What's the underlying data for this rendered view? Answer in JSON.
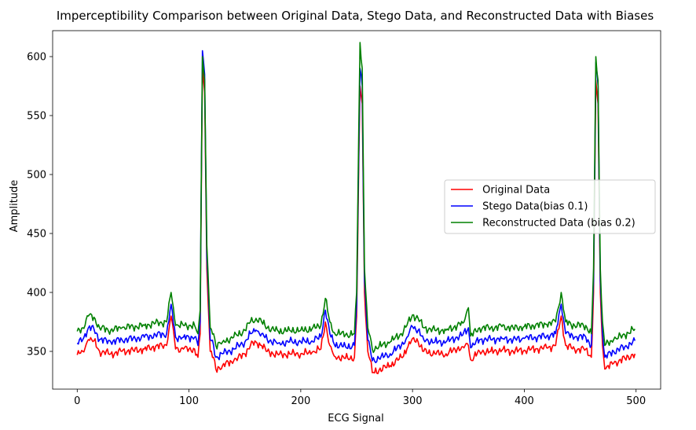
{
  "chart_data": {
    "type": "line",
    "title": "Imperceptibility Comparison between  Original Data, Stego Data, and Reconstructed Data with Biases",
    "xlabel": "ECG Signal",
    "ylabel": "Amplitude",
    "xlim": [
      -22,
      522
    ],
    "ylim": [
      318,
      622
    ],
    "xticks": [
      0,
      100,
      200,
      300,
      400,
      500
    ],
    "yticks": [
      350,
      400,
      450,
      500,
      550,
      600
    ],
    "grid": false,
    "legend_position": "center-right",
    "series": [
      {
        "name": " Original Data",
        "color": "#ff0000",
        "offset": 0,
        "points": [
          [
            0,
            347
          ],
          [
            5,
            350
          ],
          [
            10,
            360
          ],
          [
            15,
            359
          ],
          [
            20,
            350
          ],
          [
            30,
            348
          ],
          [
            40,
            350
          ],
          [
            50,
            351
          ],
          [
            60,
            352
          ],
          [
            70,
            354
          ],
          [
            80,
            355
          ],
          [
            84,
            380
          ],
          [
            88,
            352
          ],
          [
            95,
            352
          ],
          [
            100,
            352
          ],
          [
            105,
            352
          ],
          [
            108,
            345
          ],
          [
            110,
            365
          ],
          [
            112,
            590
          ],
          [
            114,
            570
          ],
          [
            116,
            420
          ],
          [
            119,
            350
          ],
          [
            122,
            345
          ],
          [
            124,
            335
          ],
          [
            130,
            338
          ],
          [
            140,
            342
          ],
          [
            150,
            348
          ],
          [
            155,
            355
          ],
          [
            160,
            358
          ],
          [
            165,
            355
          ],
          [
            170,
            350
          ],
          [
            180,
            347
          ],
          [
            190,
            348
          ],
          [
            200,
            348
          ],
          [
            210,
            349
          ],
          [
            218,
            352
          ],
          [
            222,
            375
          ],
          [
            226,
            355
          ],
          [
            230,
            346
          ],
          [
            240,
            344
          ],
          [
            248,
            345
          ],
          [
            250,
            380
          ],
          [
            253,
            575
          ],
          [
            255,
            560
          ],
          [
            257,
            400
          ],
          [
            260,
            350
          ],
          [
            262,
            343
          ],
          [
            264,
            332
          ],
          [
            270,
            334
          ],
          [
            280,
            338
          ],
          [
            290,
            345
          ],
          [
            295,
            352
          ],
          [
            300,
            361
          ],
          [
            305,
            358
          ],
          [
            310,
            350
          ],
          [
            320,
            348
          ],
          [
            330,
            348
          ],
          [
            340,
            352
          ],
          [
            345,
            354
          ],
          [
            350,
            355
          ],
          [
            352,
            343
          ],
          [
            360,
            350
          ],
          [
            370,
            350
          ],
          [
            380,
            351
          ],
          [
            390,
            350
          ],
          [
            400,
            351
          ],
          [
            410,
            352
          ],
          [
            420,
            353
          ],
          [
            428,
            355
          ],
          [
            433,
            380
          ],
          [
            437,
            355
          ],
          [
            445,
            352
          ],
          [
            455,
            352
          ],
          [
            460,
            345
          ],
          [
            462,
            400
          ],
          [
            464,
            580
          ],
          [
            466,
            560
          ],
          [
            468,
            400
          ],
          [
            470,
            355
          ],
          [
            472,
            335
          ],
          [
            480,
            340
          ],
          [
            490,
            344
          ],
          [
            499,
            348
          ]
        ]
      },
      {
        "name": " Stego Data(bias 0.1)",
        "color": "#0000ff",
        "offset": 10,
        "points": [
          [
            0,
            347
          ],
          [
            5,
            350
          ],
          [
            10,
            360
          ],
          [
            15,
            359
          ],
          [
            20,
            350
          ],
          [
            30,
            348
          ],
          [
            40,
            350
          ],
          [
            50,
            351
          ],
          [
            60,
            352
          ],
          [
            70,
            354
          ],
          [
            80,
            355
          ],
          [
            84,
            380
          ],
          [
            88,
            352
          ],
          [
            95,
            352
          ],
          [
            100,
            352
          ],
          [
            105,
            352
          ],
          [
            108,
            345
          ],
          [
            110,
            365
          ],
          [
            112,
            595
          ],
          [
            114,
            575
          ],
          [
            116,
            420
          ],
          [
            119,
            350
          ],
          [
            122,
            345
          ],
          [
            124,
            335
          ],
          [
            130,
            338
          ],
          [
            140,
            342
          ],
          [
            150,
            348
          ],
          [
            155,
            355
          ],
          [
            160,
            358
          ],
          [
            165,
            355
          ],
          [
            170,
            350
          ],
          [
            180,
            347
          ],
          [
            190,
            348
          ],
          [
            200,
            348
          ],
          [
            210,
            349
          ],
          [
            218,
            352
          ],
          [
            222,
            375
          ],
          [
            226,
            355
          ],
          [
            230,
            346
          ],
          [
            240,
            344
          ],
          [
            248,
            345
          ],
          [
            250,
            380
          ],
          [
            253,
            580
          ],
          [
            255,
            565
          ],
          [
            257,
            400
          ],
          [
            260,
            350
          ],
          [
            262,
            343
          ],
          [
            264,
            332
          ],
          [
            270,
            334
          ],
          [
            280,
            338
          ],
          [
            290,
            345
          ],
          [
            295,
            352
          ],
          [
            300,
            361
          ],
          [
            305,
            358
          ],
          [
            310,
            350
          ],
          [
            320,
            348
          ],
          [
            330,
            348
          ],
          [
            340,
            352
          ],
          [
            345,
            354
          ],
          [
            350,
            360
          ],
          [
            352,
            343
          ],
          [
            360,
            350
          ],
          [
            370,
            350
          ],
          [
            380,
            351
          ],
          [
            390,
            350
          ],
          [
            400,
            351
          ],
          [
            410,
            352
          ],
          [
            420,
            353
          ],
          [
            428,
            355
          ],
          [
            433,
            380
          ],
          [
            437,
            355
          ],
          [
            445,
            352
          ],
          [
            455,
            352
          ],
          [
            460,
            345
          ],
          [
            462,
            400
          ],
          [
            464,
            585
          ],
          [
            466,
            565
          ],
          [
            468,
            400
          ],
          [
            470,
            355
          ],
          [
            472,
            335
          ],
          [
            480,
            340
          ],
          [
            490,
            344
          ],
          [
            499,
            349
          ]
        ]
      },
      {
        "name": " Reconstructed Data (bias 0.2)",
        "color": "#008000",
        "offset": 20,
        "points": [
          [
            0,
            347
          ],
          [
            5,
            350
          ],
          [
            10,
            360
          ],
          [
            15,
            359
          ],
          [
            20,
            350
          ],
          [
            30,
            348
          ],
          [
            40,
            350
          ],
          [
            50,
            351
          ],
          [
            60,
            352
          ],
          [
            70,
            354
          ],
          [
            80,
            355
          ],
          [
            84,
            380
          ],
          [
            88,
            352
          ],
          [
            95,
            352
          ],
          [
            100,
            352
          ],
          [
            105,
            352
          ],
          [
            108,
            345
          ],
          [
            110,
            365
          ],
          [
            112,
            580
          ],
          [
            114,
            560
          ],
          [
            116,
            420
          ],
          [
            119,
            350
          ],
          [
            122,
            345
          ],
          [
            124,
            335
          ],
          [
            130,
            338
          ],
          [
            140,
            342
          ],
          [
            150,
            348
          ],
          [
            155,
            355
          ],
          [
            160,
            358
          ],
          [
            165,
            355
          ],
          [
            170,
            350
          ],
          [
            180,
            347
          ],
          [
            190,
            348
          ],
          [
            200,
            348
          ],
          [
            210,
            349
          ],
          [
            218,
            352
          ],
          [
            222,
            375
          ],
          [
            226,
            355
          ],
          [
            230,
            346
          ],
          [
            240,
            344
          ],
          [
            248,
            345
          ],
          [
            250,
            380
          ],
          [
            253,
            592
          ],
          [
            255,
            570
          ],
          [
            257,
            400
          ],
          [
            260,
            350
          ],
          [
            262,
            343
          ],
          [
            264,
            332
          ],
          [
            270,
            334
          ],
          [
            280,
            338
          ],
          [
            290,
            345
          ],
          [
            295,
            352
          ],
          [
            300,
            361
          ],
          [
            305,
            358
          ],
          [
            310,
            350
          ],
          [
            320,
            348
          ],
          [
            330,
            348
          ],
          [
            340,
            352
          ],
          [
            345,
            354
          ],
          [
            350,
            367
          ],
          [
            352,
            343
          ],
          [
            360,
            350
          ],
          [
            370,
            350
          ],
          [
            380,
            351
          ],
          [
            390,
            350
          ],
          [
            400,
            351
          ],
          [
            410,
            352
          ],
          [
            420,
            353
          ],
          [
            428,
            355
          ],
          [
            433,
            380
          ],
          [
            437,
            355
          ],
          [
            445,
            352
          ],
          [
            455,
            352
          ],
          [
            460,
            345
          ],
          [
            462,
            400
          ],
          [
            464,
            580
          ],
          [
            466,
            560
          ],
          [
            468,
            400
          ],
          [
            470,
            355
          ],
          [
            472,
            335
          ],
          [
            480,
            340
          ],
          [
            490,
            344
          ],
          [
            499,
            349
          ]
        ]
      }
    ]
  }
}
